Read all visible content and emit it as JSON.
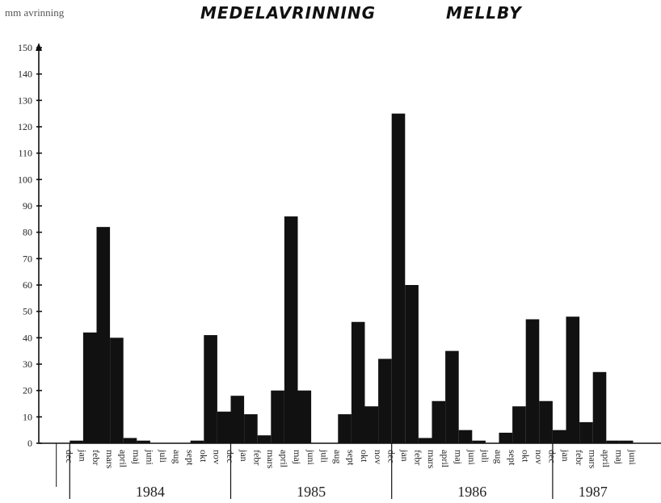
{
  "chart_data": {
    "type": "bar",
    "title": "MEDELAVRINNING",
    "subtitle": "MELLBY",
    "ylabel": "mm avrinning",
    "xlabel": "",
    "ylim": [
      0,
      150
    ],
    "yticks": [
      0,
      10,
      20,
      30,
      40,
      50,
      60,
      70,
      80,
      90,
      100,
      110,
      120,
      130,
      140,
      150
    ],
    "grid": false,
    "categories": [
      "dec",
      "jan",
      "febr",
      "mars",
      "april",
      "maj",
      "juni",
      "juli",
      "aug",
      "sept",
      "okt",
      "nov",
      "dec",
      "jan",
      "febr",
      "mars",
      "april",
      "maj",
      "juni",
      "juli",
      "aug",
      "sept",
      "okt",
      "nov",
      "dec",
      "jan",
      "febr",
      "mars",
      "april",
      "maj",
      "juni",
      "juli",
      "aug",
      "sept",
      "okt",
      "nov",
      "dec",
      "jan",
      "febr",
      "mars",
      "april",
      "maj",
      "juni"
    ],
    "values": [
      0,
      1,
      42,
      82,
      40,
      2,
      1,
      0,
      0,
      0,
      1,
      41,
      12,
      18,
      11,
      3,
      20,
      86,
      20,
      0,
      0,
      11,
      46,
      14,
      32,
      125,
      60,
      2,
      16,
      35,
      5,
      1,
      0,
      4,
      14,
      47,
      16,
      5,
      48,
      8,
      27,
      1,
      1
    ],
    "year_groups": [
      {
        "label": "1984",
        "start": 1,
        "end": 12
      },
      {
        "label": "1985",
        "start": 13,
        "end": 24
      },
      {
        "label": "1986",
        "start": 25,
        "end": 36
      },
      {
        "label": "1987",
        "start": 37,
        "end": 42
      }
    ],
    "bar_color": "#111111"
  }
}
